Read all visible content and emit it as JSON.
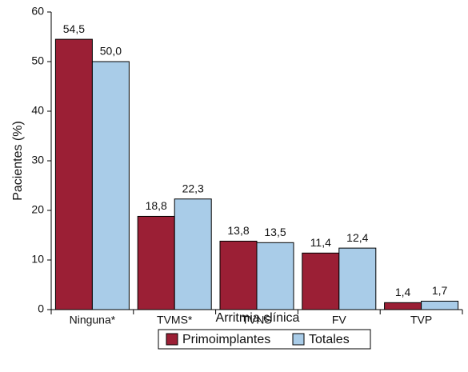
{
  "chart_data": {
    "type": "bar",
    "x_label": "Arritmia clínica",
    "y_label": "Pacientes (%)",
    "categories": [
      "Ninguna*",
      "TVMS*",
      "TVNS",
      "FV",
      "TVP"
    ],
    "series": [
      {
        "name": "Primoimplantes",
        "color": "#9b1f35",
        "values": [
          54.5,
          18.8,
          13.8,
          11.4,
          1.4
        ],
        "value_labels": [
          "54,5",
          "18,8",
          "13,8",
          "11,4",
          "1,4"
        ]
      },
      {
        "name": "Totales",
        "color": "#a9cce8",
        "values": [
          50.0,
          22.3,
          13.5,
          12.4,
          1.7
        ],
        "value_labels": [
          "50,0",
          "22,3",
          "13,5",
          "12,4",
          "1,7"
        ]
      }
    ],
    "ylim": [
      0,
      60
    ],
    "yticks": [
      0,
      10,
      20,
      30,
      40,
      50,
      60
    ],
    "legend": "bottom"
  }
}
